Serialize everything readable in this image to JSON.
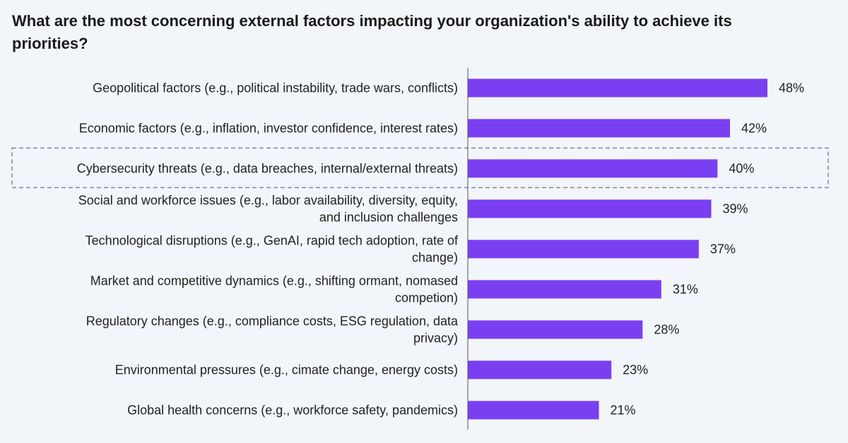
{
  "chart_data": {
    "type": "bar",
    "orientation": "horizontal",
    "title": "What are the most concerning external factors impacting your organization's ability to achieve its priorities?",
    "categories": [
      [
        "Geopolitical factors (e.g., political instability, trade wars, conflicts)"
      ],
      [
        "Economic factors (e.g., inflation, investor confidence, interest rates)"
      ],
      [
        "Cybersecurity threats (e.g., data breaches, internal/external threats)"
      ],
      [
        "Social and workforce issues (e.g., labor availability, diversity, equity,",
        "and inclusion challenges"
      ],
      [
        "Technological disruptions (e.g., GenAI, rapid tech adoption, rate of",
        "change)"
      ],
      [
        "Market and competitive dynamics (e.g., shifting ormant, nomased",
        "competion)"
      ],
      [
        "Regulatory changes (e.g., compliance costs, ESG regulation, data",
        "privacy)"
      ],
      [
        "Environmental pressures (e.g., cimate change, energy costs)"
      ],
      [
        "Global health concerns (e.g., workforce safety, pandemics)"
      ]
    ],
    "values": [
      48,
      42,
      40,
      39,
      37,
      31,
      28,
      23,
      21
    ],
    "value_labels": [
      "48%",
      "42%",
      "40%",
      "39%",
      "37%",
      "31%",
      "28%",
      "23%",
      "21%"
    ],
    "unit": "%",
    "highlighted_category_index": 2,
    "bar_color": "#7b3ff2",
    "highlight_border_color": "#7a8aa6",
    "xlim": [
      0,
      48
    ],
    "grid": false,
    "legend": "none"
  }
}
